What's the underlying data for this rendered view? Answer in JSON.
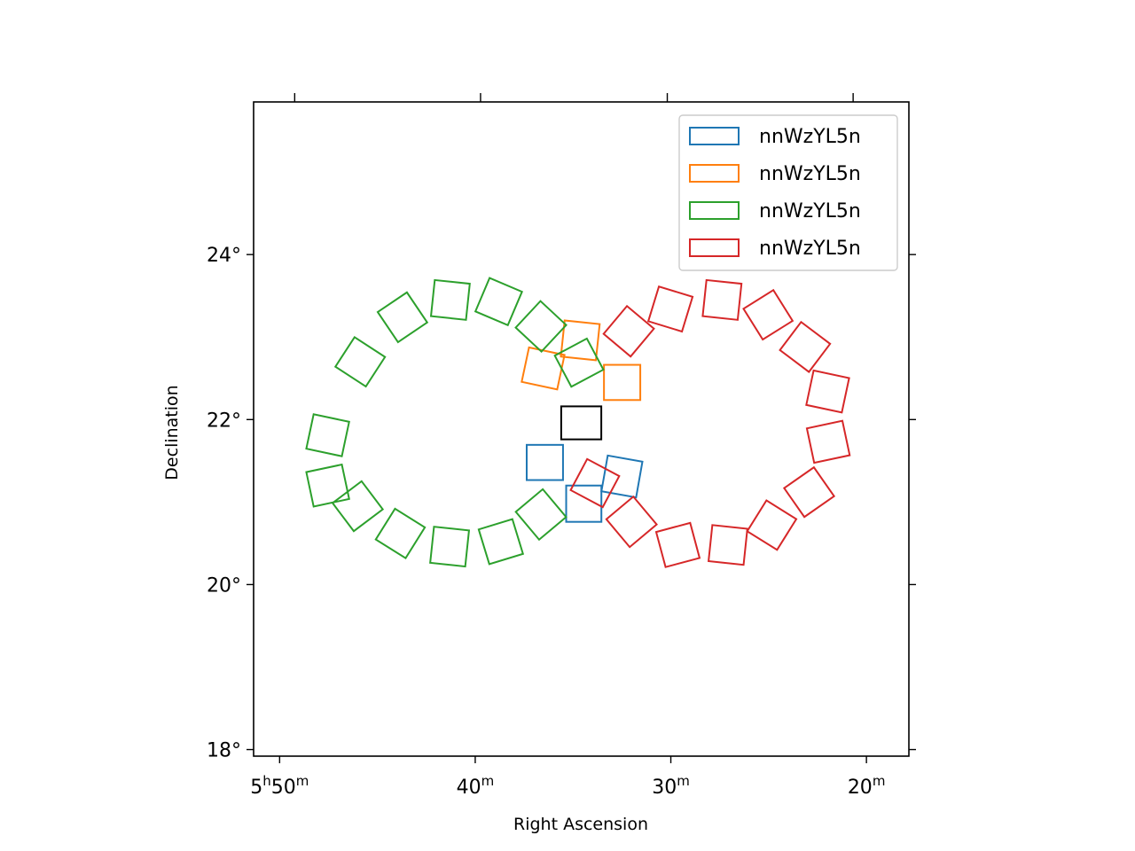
{
  "chart_data": {
    "type": "scatter",
    "title": "",
    "xlabel": "Right Ascension",
    "ylabel": "Declination",
    "x_unit": "RA minutes (5h + m)",
    "xlim": [
      51.33,
      17.83
    ],
    "ylim": [
      17.92,
      25.85
    ],
    "x_ticks": [
      {
        "value": 50,
        "label_main": "5",
        "label_sup1": "h",
        "label_num": "50",
        "label_sup2": "m"
      },
      {
        "value": 40,
        "label_main": "",
        "label_sup1": "",
        "label_num": "40",
        "label_sup2": "m"
      },
      {
        "value": 30,
        "label_main": "",
        "label_sup1": "",
        "label_num": "30",
        "label_sup2": "m"
      },
      {
        "value": 20,
        "label_main": "",
        "label_sup1": "",
        "label_num": "20",
        "label_sup2": "m"
      }
    ],
    "y_ticks": [
      {
        "value": 18,
        "label": "18°"
      },
      {
        "value": 20,
        "label": "20°"
      },
      {
        "value": 22,
        "label": "22°"
      },
      {
        "value": 24,
        "label": "24°"
      }
    ],
    "legend_position": "top-right",
    "center_box": {
      "ra": 34.58,
      "dec": 21.96,
      "width": 2.05,
      "height": 0.4,
      "color": "#000000"
    },
    "series": [
      {
        "name": "nnWzYL5n",
        "color": "#1f77b4",
        "boxes": [
          {
            "ra": 36.44,
            "dec": 21.48,
            "angle": 0
          },
          {
            "ra": 34.45,
            "dec": 20.98,
            "angle": 90
          },
          {
            "ra": 32.5,
            "dec": 21.31,
            "angle": 100
          }
        ]
      },
      {
        "name": "nnWzYL5n",
        "color": "#ff7f0e",
        "boxes": [
          {
            "ra": 36.53,
            "dec": 22.62,
            "angle": 12
          },
          {
            "ra": 34.63,
            "dec": 22.96,
            "angle": 96
          },
          {
            "ra": 32.49,
            "dec": 22.45,
            "angle": 0
          }
        ]
      },
      {
        "name": "nnWzYL5n",
        "color": "#2ca02c",
        "boxes": [
          {
            "ra": 34.69,
            "dec": 22.69,
            "angle": 152
          },
          {
            "ra": 36.64,
            "dec": 23.13,
            "angle": 133
          },
          {
            "ra": 38.8,
            "dec": 23.43,
            "angle": 113
          },
          {
            "ra": 41.27,
            "dec": 23.45,
            "angle": 96
          },
          {
            "ra": 43.72,
            "dec": 23.24,
            "angle": 56
          },
          {
            "ra": 45.88,
            "dec": 22.7,
            "angle": 33
          },
          {
            "ra": 47.54,
            "dec": 21.81,
            "angle": 12
          },
          {
            "ra": 47.54,
            "dec": 21.2,
            "angle": 168
          },
          {
            "ra": 46.01,
            "dec": 20.95,
            "angle": 143
          },
          {
            "ra": 43.83,
            "dec": 20.62,
            "angle": 122
          },
          {
            "ra": 41.31,
            "dec": 20.46,
            "angle": 96
          },
          {
            "ra": 38.69,
            "dec": 20.52,
            "angle": 73
          },
          {
            "ra": 36.64,
            "dec": 20.85,
            "angle": 50
          }
        ]
      },
      {
        "name": "nnWzYL5n",
        "color": "#d62728",
        "boxes": [
          {
            "ra": 33.88,
            "dec": 21.23,
            "angle": 28
          },
          {
            "ra": 32.01,
            "dec": 20.76,
            "angle": 50
          },
          {
            "ra": 29.64,
            "dec": 20.48,
            "angle": 75
          },
          {
            "ra": 27.08,
            "dec": 20.48,
            "angle": 96
          },
          {
            "ra": 24.84,
            "dec": 20.72,
            "angle": 122
          },
          {
            "ra": 22.93,
            "dec": 21.12,
            "angle": 145
          },
          {
            "ra": 21.95,
            "dec": 21.73,
            "angle": 168
          },
          {
            "ra": 21.98,
            "dec": 22.34,
            "angle": 12
          },
          {
            "ra": 23.14,
            "dec": 22.88,
            "angle": 37
          },
          {
            "ra": 25.03,
            "dec": 23.27,
            "angle": 58
          },
          {
            "ra": 27.38,
            "dec": 23.45,
            "angle": 96
          },
          {
            "ra": 30.02,
            "dec": 23.34,
            "angle": 107
          },
          {
            "ra": 32.15,
            "dec": 23.07,
            "angle": 130
          }
        ]
      }
    ],
    "box_size": {
      "width": 1.8,
      "height": 0.44
    }
  }
}
